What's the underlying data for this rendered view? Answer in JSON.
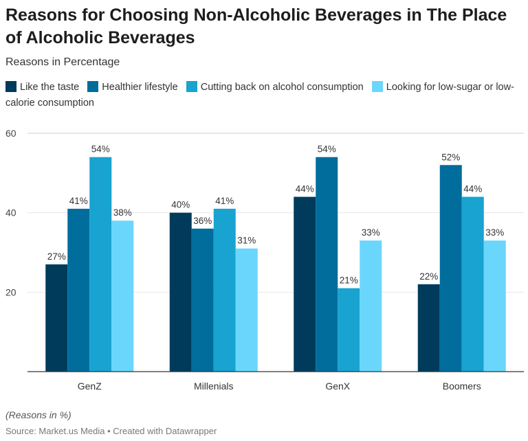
{
  "chart_data": {
    "type": "bar",
    "title": "Reasons for Choosing Non-Alcoholic Beverages in The Place of Alcoholic Beverages",
    "subtitle": "Reasons in Percentage",
    "categories": [
      "GenZ",
      "Millenials",
      "GenX",
      "Boomers"
    ],
    "series": [
      {
        "name": "Like the taste",
        "color": "#003b5c",
        "values": [
          27,
          40,
          44,
          22
        ]
      },
      {
        "name": "Healthier lifestyle",
        "color": "#006d9c",
        "values": [
          41,
          36,
          54,
          52
        ]
      },
      {
        "name": "Cutting back on alcohol consumption",
        "color": "#18a3d0",
        "values": [
          54,
          41,
          21,
          44
        ]
      },
      {
        "name": "Looking for low-sugar or low-calorie consumption",
        "color": "#6bd6fb",
        "values": [
          38,
          31,
          33,
          33
        ]
      }
    ],
    "value_suffix": "%",
    "ylim": [
      0,
      60
    ],
    "yticks": [
      20,
      40,
      60
    ],
    "grid": true,
    "legend": "top-left",
    "note": "(Reasons in %)",
    "source": "Source: Market.us Media • Created with Datawrapper"
  }
}
